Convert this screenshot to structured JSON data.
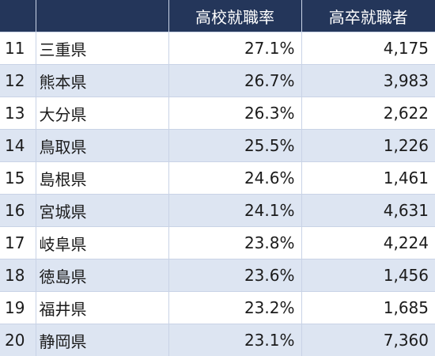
{
  "table": {
    "columns": [
      "",
      "",
      "高校就職率",
      "高卒就職者"
    ],
    "rows": [
      {
        "rank": "11",
        "prefecture": "三重県",
        "rate": "27.1%",
        "count": "4,175"
      },
      {
        "rank": "12",
        "prefecture": "熊本県",
        "rate": "26.7%",
        "count": "3,983"
      },
      {
        "rank": "13",
        "prefecture": "大分県",
        "rate": "26.3%",
        "count": "2,622"
      },
      {
        "rank": "14",
        "prefecture": "鳥取県",
        "rate": "25.5%",
        "count": "1,226"
      },
      {
        "rank": "15",
        "prefecture": "島根県",
        "rate": "24.6%",
        "count": "1,461"
      },
      {
        "rank": "16",
        "prefecture": "宮城県",
        "rate": "24.1%",
        "count": "4,631"
      },
      {
        "rank": "17",
        "prefecture": "岐阜県",
        "rate": "23.8%",
        "count": "4,224"
      },
      {
        "rank": "18",
        "prefecture": "徳島県",
        "rate": "23.6%",
        "count": "1,456"
      },
      {
        "rank": "19",
        "prefecture": "福井県",
        "rate": "23.2%",
        "count": "1,685"
      },
      {
        "rank": "20",
        "prefecture": "静岡県",
        "rate": "23.1%",
        "count": "7,360"
      }
    ]
  },
  "colors": {
    "header_bg": "#24365a",
    "header_text": "#ffffff",
    "row_alt_bg": "#dde5f2",
    "row_bg": "#ffffff",
    "grid_line": "#c9d3e6"
  }
}
